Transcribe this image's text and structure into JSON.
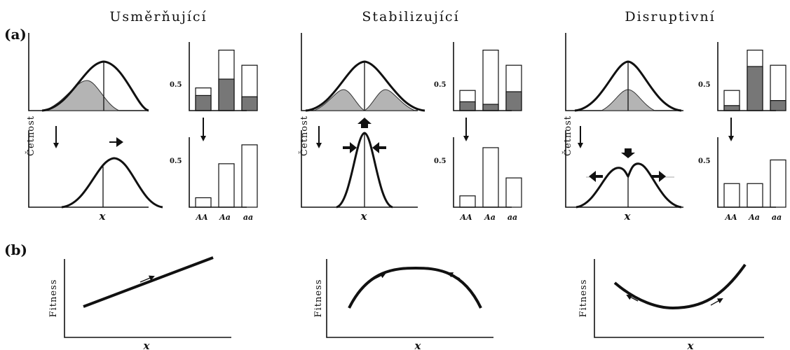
{
  "titles": {
    "directional": "Usměrňující",
    "stabilizing": "Stabilizující",
    "disruptive": "Disruptivní"
  },
  "panel_labels": {
    "a": "(a)",
    "b": "(b)"
  },
  "axis_labels": {
    "frequency": "Četnost",
    "fitness": "Fitness",
    "x": "x"
  },
  "tick_label": "0.5",
  "genotypes": [
    "AA",
    "Aa",
    "aa"
  ],
  "chart_data": [
    {
      "type": "bar",
      "panel": "directional-before",
      "categories": [
        "AA",
        "Aa",
        "aa"
      ],
      "series": [
        {
          "values": [
            0.18,
            0.48,
            0.36
          ]
        },
        {
          "values": [
            0.12,
            0.25,
            0.11
          ]
        }
      ],
      "ylim": [
        0,
        0.6
      ]
    },
    {
      "type": "bar",
      "panel": "directional-after",
      "categories": [
        "AA",
        "Aa",
        "aa"
      ],
      "series": [
        {
          "values": [
            0.1,
            0.46,
            0.66
          ]
        }
      ],
      "ylim": [
        0,
        0.75
      ]
    },
    {
      "type": "bar",
      "panel": "stabilizing-before",
      "categories": [
        "AA",
        "Aa",
        "aa"
      ],
      "series": [
        {
          "values": [
            0.16,
            0.48,
            0.36
          ]
        },
        {
          "values": [
            0.07,
            0.05,
            0.15
          ]
        }
      ],
      "ylim": [
        0,
        0.6
      ]
    },
    {
      "type": "bar",
      "panel": "stabilizing-after",
      "categories": [
        "AA",
        "Aa",
        "aa"
      ],
      "series": [
        {
          "values": [
            0.12,
            0.63,
            0.31
          ]
        }
      ],
      "ylim": [
        0,
        0.75
      ]
    },
    {
      "type": "bar",
      "panel": "disruptive-before",
      "categories": [
        "AA",
        "Aa",
        "aa"
      ],
      "series": [
        {
          "values": [
            0.16,
            0.48,
            0.36
          ]
        },
        {
          "values": [
            0.04,
            0.35,
            0.08
          ]
        }
      ],
      "ylim": [
        0,
        0.6
      ]
    },
    {
      "type": "bar",
      "panel": "disruptive-after",
      "categories": [
        "AA",
        "Aa",
        "aa"
      ],
      "series": [
        {
          "values": [
            0.25,
            0.25,
            0.5
          ]
        }
      ],
      "ylim": [
        0,
        0.75
      ]
    }
  ]
}
